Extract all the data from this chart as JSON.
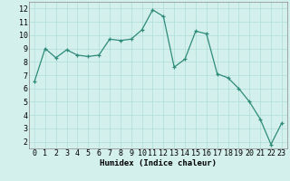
{
  "x": [
    0,
    1,
    2,
    3,
    4,
    5,
    6,
    7,
    8,
    9,
    10,
    11,
    12,
    13,
    14,
    15,
    16,
    17,
    18,
    19,
    20,
    21,
    22,
    23
  ],
  "y": [
    6.5,
    9.0,
    8.3,
    8.9,
    8.5,
    8.4,
    8.5,
    9.7,
    9.6,
    9.7,
    10.4,
    11.9,
    11.4,
    7.6,
    8.2,
    10.3,
    10.1,
    7.1,
    6.8,
    6.0,
    5.0,
    3.7,
    1.8,
    3.4
  ],
  "line_color": "#2e8b7a",
  "marker": "+",
  "marker_size": 3.5,
  "linewidth": 0.9,
  "background_color": "#d4f0ec",
  "grid_color": "#b0ddd8",
  "xlabel": "Humidex (Indice chaleur)",
  "xlabel_fontsize": 6.5,
  "tick_fontsize": 6.0,
  "ylim": [
    1.5,
    12.5
  ],
  "xlim": [
    -0.5,
    23.5
  ],
  "yticks": [
    2,
    3,
    4,
    5,
    6,
    7,
    8,
    9,
    10,
    11,
    12
  ],
  "xticks": [
    0,
    1,
    2,
    3,
    4,
    5,
    6,
    7,
    8,
    9,
    10,
    11,
    12,
    13,
    14,
    15,
    16,
    17,
    18,
    19,
    20,
    21,
    22,
    23
  ]
}
